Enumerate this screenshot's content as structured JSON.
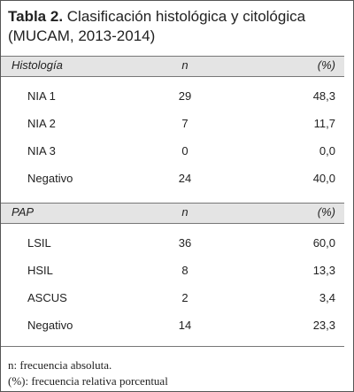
{
  "title": {
    "label": "Tabla 2.",
    "lines": [
      "Clasificación histológica y citológica",
      "(MUCAM, 2013-2014)"
    ]
  },
  "table": {
    "sections": [
      {
        "header": [
          "Histología",
          "n",
          "(%)"
        ],
        "rows": [
          [
            "NIA 1",
            "29",
            "48,3"
          ],
          [
            "NIA 2",
            "7",
            "11,7"
          ],
          [
            "NIA 3",
            "0",
            "0,0"
          ],
          [
            "Negativo",
            "24",
            "40,0"
          ]
        ]
      },
      {
        "header": [
          "PAP",
          "n",
          "(%)"
        ],
        "rows": [
          [
            "LSIL",
            "36",
            "60,0"
          ],
          [
            "HSIL",
            "8",
            "13,3"
          ],
          [
            "ASCUS",
            "2",
            "3,4"
          ],
          [
            "Negativo",
            "14",
            "23,3"
          ]
        ]
      }
    ]
  },
  "notes": [
    "n: frecuencia absoluta.",
    "(%): frecuencia relativa porcentual"
  ]
}
